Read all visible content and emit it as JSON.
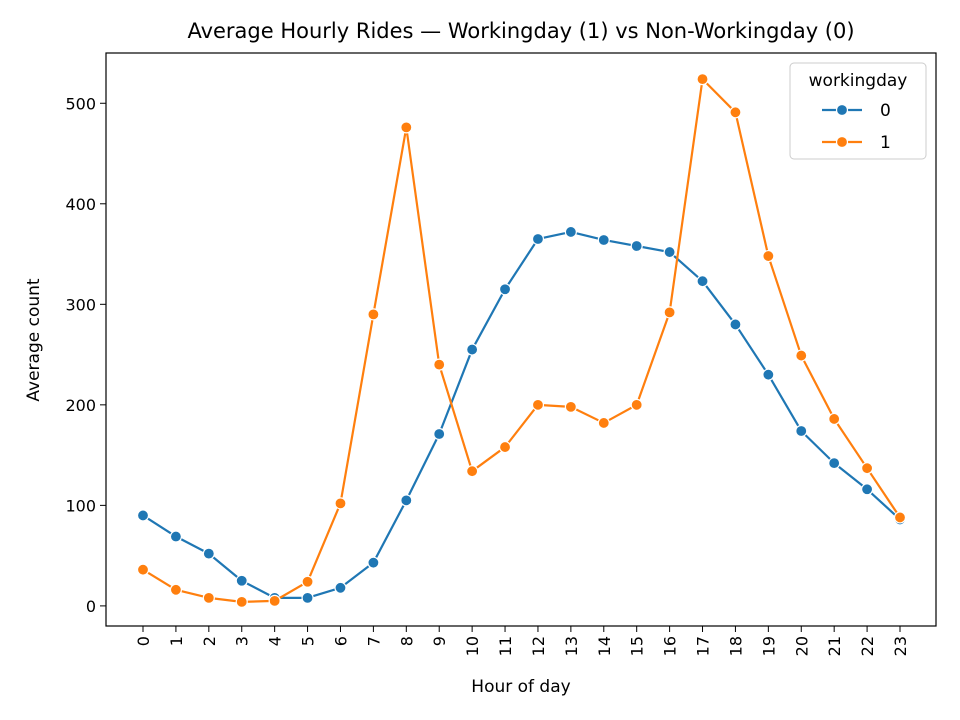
{
  "chart_data": {
    "type": "line",
    "title": "Average Hourly Rides — Workingday (1) vs Non-Workingday (0)",
    "xlabel": "Hour of day",
    "ylabel": "Average count",
    "categories": [
      "0",
      "1",
      "2",
      "3",
      "4",
      "5",
      "6",
      "7",
      "8",
      "9",
      "10",
      "11",
      "12",
      "13",
      "14",
      "15",
      "16",
      "17",
      "18",
      "19",
      "20",
      "21",
      "22",
      "23"
    ],
    "ylim": [
      -20,
      550
    ],
    "yticks": [
      "0",
      "100",
      "200",
      "300",
      "400",
      "500"
    ],
    "yticks_values": [
      0,
      100,
      200,
      300,
      400,
      500
    ],
    "legend": {
      "title": "workingday",
      "placement": "top-right"
    },
    "grid": false,
    "series": [
      {
        "name": "0",
        "color": "#1f77b4",
        "values": [
          90,
          69,
          52,
          25,
          8,
          8,
          18,
          43,
          105,
          171,
          255,
          315,
          365,
          372,
          364,
          358,
          352,
          323,
          280,
          230,
          174,
          142,
          116,
          86
        ]
      },
      {
        "name": "1",
        "color": "#ff7f0e",
        "values": [
          36,
          16,
          8,
          4,
          5,
          24,
          102,
          290,
          476,
          240,
          134,
          158,
          200,
          198,
          182,
          200,
          292,
          524,
          491,
          348,
          249,
          186,
          137,
          88
        ]
      }
    ]
  }
}
